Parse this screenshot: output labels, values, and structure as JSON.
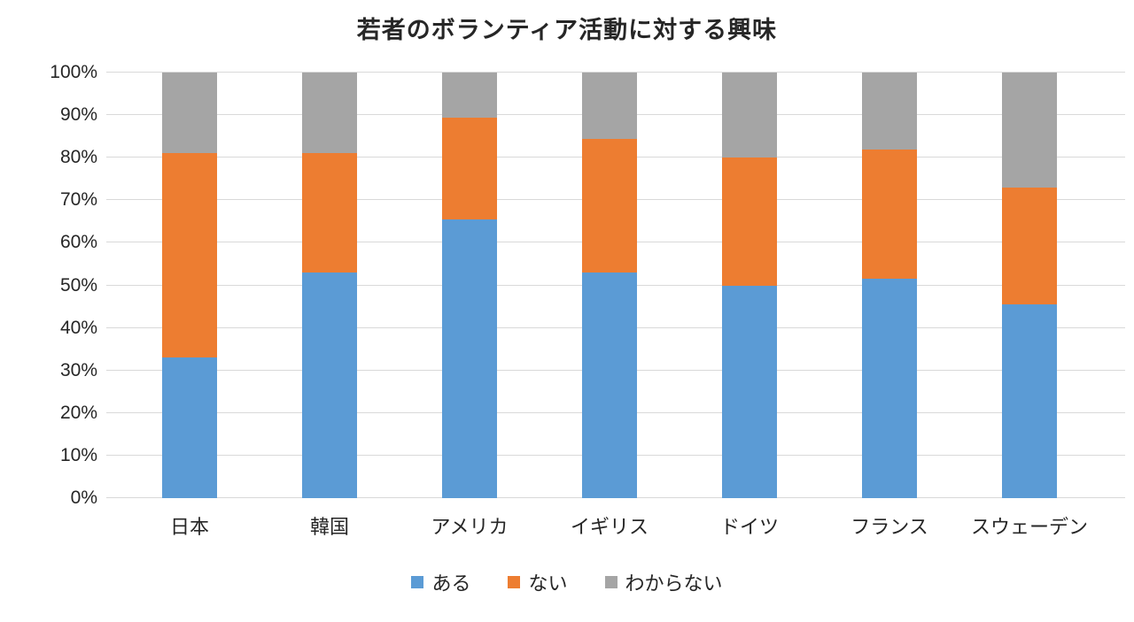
{
  "chart_data": {
    "type": "bar",
    "subtype": "stacked-100",
    "title": "若者のボランティア活動に対する興味",
    "categories": [
      "日本",
      "韓国",
      "アメリカ",
      "イギリス",
      "ドイツ",
      "フランス",
      "スウェーデン"
    ],
    "series": [
      {
        "name": "ある",
        "color": "#5b9bd5",
        "values": [
          33,
          53,
          65.5,
          53,
          50,
          51.5,
          45.5
        ]
      },
      {
        "name": "ない",
        "color": "#ed7d31",
        "values": [
          48,
          28,
          24,
          31.5,
          30,
          30.5,
          27.5
        ]
      },
      {
        "name": "わからない",
        "color": "#a5a5a5",
        "values": [
          19,
          19,
          10.5,
          15.5,
          20,
          18,
          27
        ]
      }
    ],
    "ylabel": "",
    "xlabel": "",
    "ylim": [
      0,
      100
    ],
    "y_ticks": [
      0,
      10,
      20,
      30,
      40,
      50,
      60,
      70,
      80,
      90,
      100
    ],
    "y_tick_suffix": "%",
    "grid": "horizontal",
    "gridline_color": "#d9d9d9",
    "legend_position": "bottom"
  }
}
